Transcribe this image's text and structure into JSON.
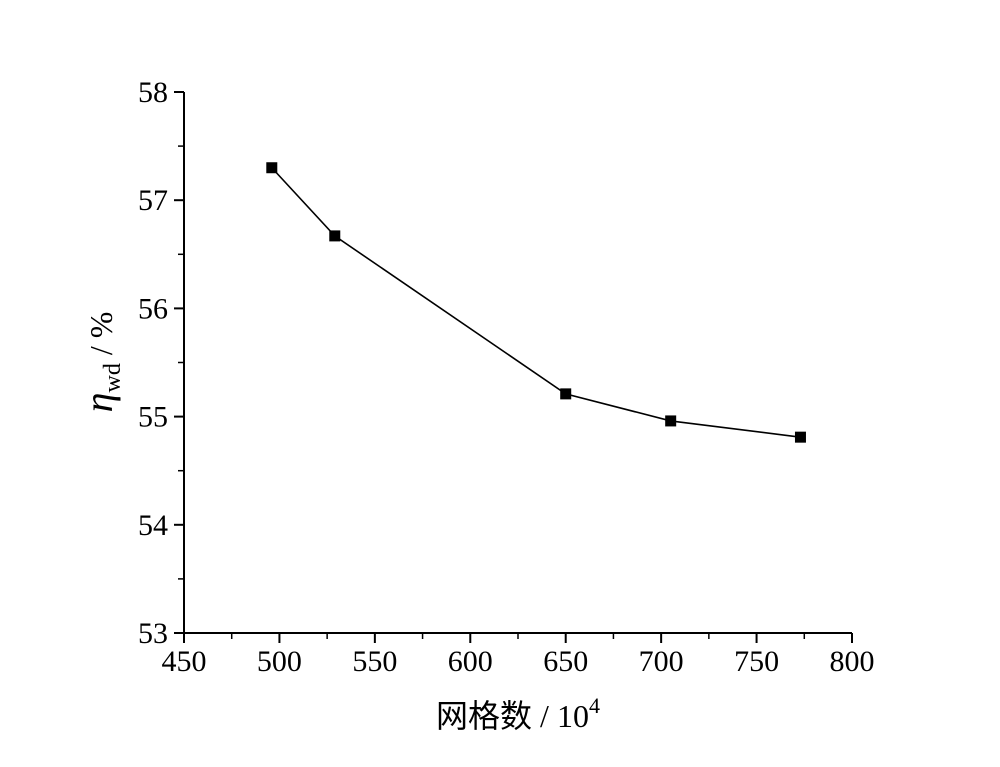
{
  "chart_data": {
    "type": "line",
    "title": "",
    "xlabel": "网格数 / 10",
    "xlabel_sup": "4",
    "ylabel_symbol": "η",
    "ylabel_sub": "wd",
    "ylabel_unit": " / %",
    "xlim": [
      450,
      800
    ],
    "ylim": [
      53,
      58
    ],
    "x_ticks": [
      450,
      500,
      550,
      600,
      650,
      700,
      750,
      800
    ],
    "y_ticks": [
      53,
      54,
      55,
      56,
      57,
      58
    ],
    "grid": false,
    "legend": "none",
    "marker": "square",
    "color": "#000000",
    "series": [
      {
        "x": [
          496,
          529,
          650,
          705,
          773
        ],
        "y": [
          57.3,
          56.67,
          55.21,
          54.96,
          54.81
        ]
      }
    ]
  }
}
